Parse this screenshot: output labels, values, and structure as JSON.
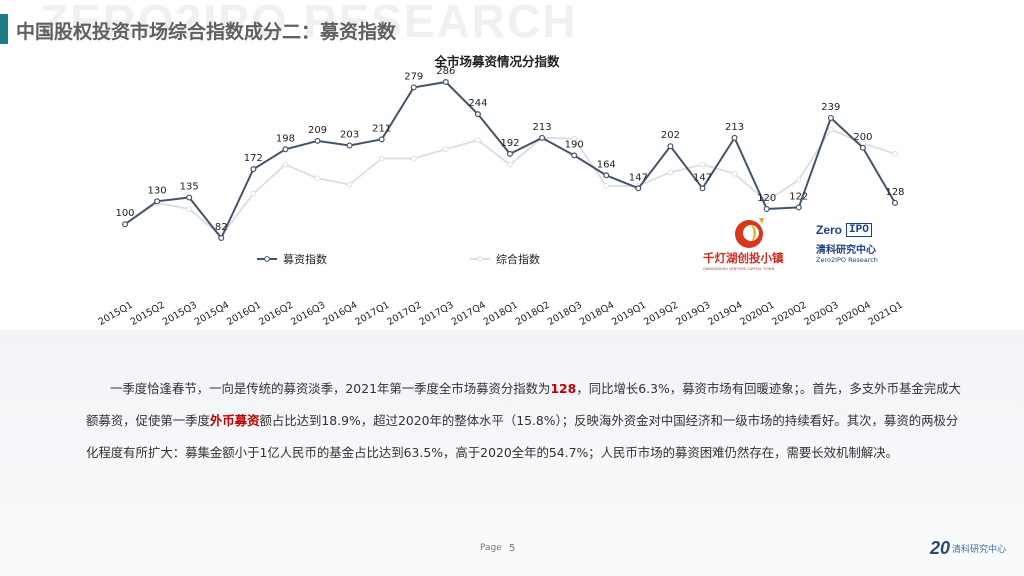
{
  "page": {
    "watermark": "ZERO2IPO RESEARCH",
    "title": "中国股权投资市场综合指数成分二：募资指数",
    "page_label": "Page",
    "page_number": "5"
  },
  "logos": {
    "left_cn": "千灯湖创投小镇",
    "left_en": "QIANDENGHU VENTURE CAPITAL TOWN",
    "right_en_a": "Zero",
    "right_en_b": "IPO",
    "right_cn": "清科研究中心",
    "right_en": "Zero2IPO Research"
  },
  "footer": {
    "brand_num": "20",
    "brand_cn": "清科研究中心"
  },
  "paragraph": {
    "p1": "一季度恰逢春节，一向是传统的募资淡季，2021年第一季度全市场募资分指数为",
    "hl1": "128",
    "p2": "，同比增长6.3%，募资市场有回暖迹象；。首先，多支外币基金完成大额募资，促使第一季度",
    "hl2": "外币募资",
    "p3": "额占比达到18.9%，超过2020年的整体水平（15.8%）；反映海外资金对中国经济和一级市场的持续看好。其次，募资的两极分化程度有所扩大：募集金额小于1亿人民币的基金占比达到63.5%，高于2020全年的54.7%；人民币市场的募资困难仍然存在，需要长效机制解决。"
  },
  "chart_data": {
    "type": "line",
    "title": "全市场募资情况分指数",
    "categories": [
      "2015Q1",
      "2015Q2",
      "2015Q3",
      "2015Q4",
      "2016Q1",
      "2016Q2",
      "2016Q3",
      "2016Q4",
      "2017Q1",
      "2017Q2",
      "2017Q3",
      "2017Q4",
      "2018Q1",
      "2018Q2",
      "2018Q3",
      "2018Q4",
      "2019Q1",
      "2019Q2",
      "2019Q3",
      "2019Q4",
      "2020Q1",
      "2020Q2",
      "2020Q3",
      "2020Q4",
      "2021Q1"
    ],
    "series": [
      {
        "name": "募资指数",
        "color": "#44546a",
        "values": [
          100,
          130,
          135,
          82,
          172,
          198,
          209,
          203,
          211,
          279,
          286,
          244,
          192,
          213,
          190,
          164,
          147,
          202,
          147,
          213,
          120,
          122,
          239,
          200,
          128
        ],
        "labeled": true
      },
      {
        "name": "综合指数",
        "color": "#dadde2",
        "values": [
          100,
          128,
          120,
          85,
          140,
          178,
          160,
          152,
          186,
          186,
          198,
          210,
          178,
          213,
          212,
          150,
          150,
          168,
          178,
          166,
          130,
          158,
          224,
          206,
          192
        ],
        "labeled": false
      }
    ],
    "xlabel": "",
    "ylabel": "",
    "ylim": [
      0,
      320
    ],
    "grid": false,
    "legend": "bottom-left"
  }
}
